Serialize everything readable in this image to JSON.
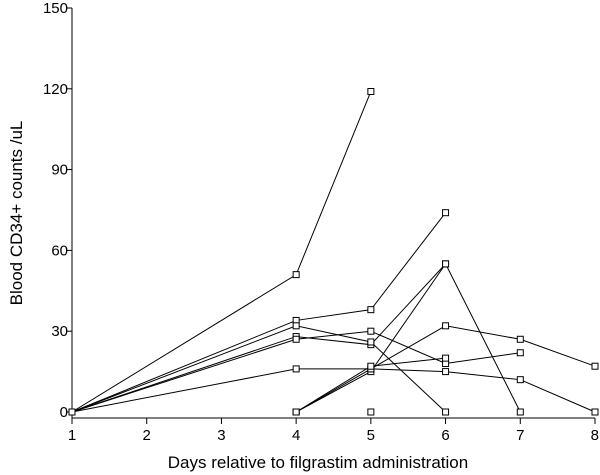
{
  "chart_data": {
    "type": "line",
    "title": "",
    "xlabel": "Days relative to filgrastim administration",
    "ylabel": "Blood CD34+ counts /uL",
    "xlim": [
      1,
      8
    ],
    "ylim": [
      0,
      150
    ],
    "x_ticks": [
      "1",
      "2",
      "3",
      "4",
      "5",
      "6",
      "7",
      "8"
    ],
    "y_ticks": [
      "0",
      "30",
      "60",
      "90",
      "120",
      "150"
    ],
    "grid": false,
    "legend": "none",
    "marker": "square",
    "series": [
      {
        "x": [
          1,
          4,
          5
        ],
        "y": [
          0,
          51,
          119
        ]
      },
      {
        "x": [
          1,
          4,
          5,
          6
        ],
        "y": [
          0,
          34,
          38,
          74
        ]
      },
      {
        "x": [
          4,
          5,
          6
        ],
        "y": [
          0,
          15,
          55
        ]
      },
      {
        "x": [
          1,
          4,
          5,
          6,
          7
        ],
        "y": [
          0,
          28,
          25,
          55,
          0
        ]
      },
      {
        "x": [
          1,
          4,
          5,
          6,
          7,
          8
        ],
        "y": [
          0,
          16,
          16,
          15,
          12,
          0
        ]
      },
      {
        "x": [
          4,
          5,
          6,
          7,
          8
        ],
        "y": [
          0,
          16,
          32,
          27,
          17
        ]
      },
      {
        "x": [
          1,
          4,
          5,
          6
        ],
        "y": [
          0,
          32,
          26,
          0
        ]
      },
      {
        "x": [
          1,
          4,
          5,
          6,
          7
        ],
        "y": [
          0,
          27,
          30,
          18,
          22
        ]
      },
      {
        "x": [
          4,
          5,
          6
        ],
        "y": [
          0,
          17,
          20
        ]
      },
      {
        "x": [
          5
        ],
        "y": [
          0
        ]
      }
    ]
  }
}
